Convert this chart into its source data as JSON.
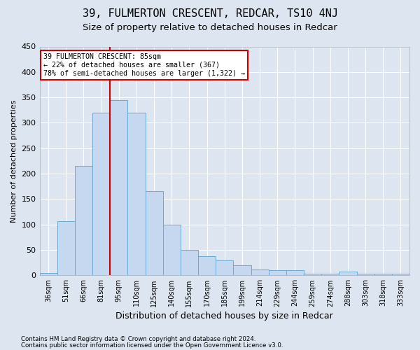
{
  "title": "39, FULMERTON CRESCENT, REDCAR, TS10 4NJ",
  "subtitle": "Size of property relative to detached houses in Redcar",
  "xlabel": "Distribution of detached houses by size in Redcar",
  "ylabel": "Number of detached properties",
  "footer1": "Contains HM Land Registry data © Crown copyright and database right 2024.",
  "footer2": "Contains public sector information licensed under the Open Government Licence v3.0.",
  "categories": [
    "36sqm",
    "51sqm",
    "66sqm",
    "81sqm",
    "95sqm",
    "110sqm",
    "125sqm",
    "140sqm",
    "155sqm",
    "170sqm",
    "185sqm",
    "199sqm",
    "214sqm",
    "229sqm",
    "244sqm",
    "259sqm",
    "274sqm",
    "288sqm",
    "303sqm",
    "318sqm",
    "333sqm"
  ],
  "values": [
    5,
    107,
    215,
    320,
    345,
    320,
    165,
    100,
    50,
    38,
    30,
    20,
    12,
    10,
    10,
    3,
    3,
    8,
    3,
    3,
    3
  ],
  "bar_color": "#c5d8f0",
  "bar_edge_color": "#6aaad4",
  "property_line_color": "#cc0000",
  "property_line_xidx": 3.5,
  "annotation_text": "39 FULMERTON CRESCENT: 85sqm\n← 22% of detached houses are smaller (367)\n78% of semi-detached houses are larger (1,322) →",
  "annotation_box_edgecolor": "#cc0000",
  "ylim": [
    0,
    450
  ],
  "yticks": [
    0,
    50,
    100,
    150,
    200,
    250,
    300,
    350,
    400,
    450
  ],
  "background_color": "#dde6f0",
  "grid_color": "#ffffff",
  "title_fontsize": 11,
  "subtitle_fontsize": 9.5
}
